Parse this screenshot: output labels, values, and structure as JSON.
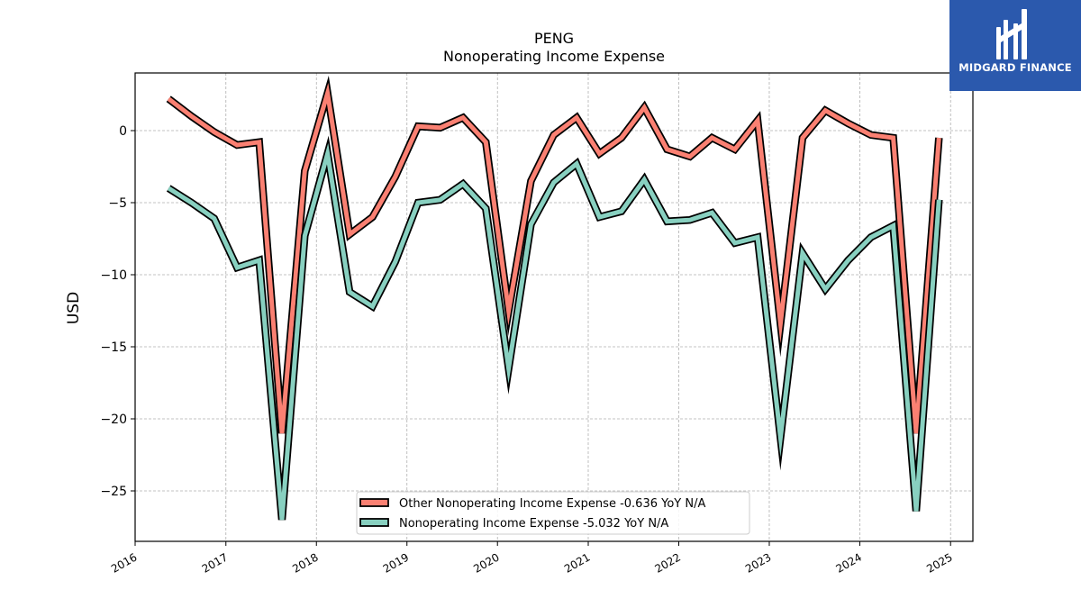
{
  "brand": {
    "name": "MIDGARD FINANCE",
    "color": "#2b59ad"
  },
  "chart_data": {
    "type": "line",
    "title": "PENG",
    "subtitle": "Nonoperating Income Expense",
    "xlabel": "",
    "ylabel": "USD",
    "ylim": [
      -28.5,
      4.0
    ],
    "xlim": [
      "2016-01-01",
      "2025-04-01"
    ],
    "x_ticks": [
      "2016",
      "2017",
      "2018",
      "2019",
      "2020",
      "2021",
      "2022",
      "2023",
      "2024",
      "2025"
    ],
    "y_ticks": [
      0,
      -5,
      -10,
      -15,
      -20,
      -25
    ],
    "y_tick_labels": [
      "0",
      "−5",
      "−10",
      "−15",
      "−20",
      "−25"
    ],
    "grid": true,
    "legend_position": "bottom-center",
    "x": [
      "2016-05",
      "2016-08",
      "2016-11",
      "2017-02",
      "2017-05",
      "2017-08",
      "2017-11",
      "2018-02",
      "2018-05",
      "2018-08",
      "2018-11",
      "2019-02",
      "2019-05",
      "2019-08",
      "2019-11",
      "2020-02",
      "2020-05",
      "2020-08",
      "2020-11",
      "2021-02",
      "2021-05",
      "2021-08",
      "2021-11",
      "2022-02",
      "2022-05",
      "2022-08",
      "2022-11",
      "2023-02",
      "2023-05",
      "2023-08",
      "2023-11",
      "2024-02",
      "2024-05",
      "2024-08",
      "2024-11"
    ],
    "series": [
      {
        "name": "Other Nonoperating Income Expense  -0.636 YoY N/A",
        "color": "#fa8072",
        "values": [
          2.2,
          1.0,
          -0.1,
          -1.0,
          -0.8,
          -21.0,
          -2.8,
          2.6,
          -7.2,
          -6.0,
          -3.2,
          0.3,
          0.2,
          0.9,
          -0.8,
          -12.5,
          -3.5,
          -0.3,
          0.9,
          -1.6,
          -0.5,
          1.6,
          -1.3,
          -1.8,
          -0.5,
          -1.3,
          0.7,
          -13.4,
          -0.5,
          1.4,
          0.5,
          -0.3,
          -0.5,
          -21.0,
          -0.5
        ]
      },
      {
        "name": "Nonoperating Income Expense  -5.032 YoY N/A",
        "color": "#88d0c0",
        "values": [
          -4.0,
          -5.0,
          -6.1,
          -9.5,
          -9.0,
          -27.0,
          -7.3,
          -1.6,
          -11.2,
          -12.2,
          -9.1,
          -5.0,
          -4.8,
          -3.7,
          -5.4,
          -16.5,
          -6.5,
          -3.6,
          -2.3,
          -6.0,
          -5.6,
          -3.4,
          -6.3,
          -6.2,
          -5.7,
          -7.8,
          -7.4,
          -21.3,
          -8.5,
          -11.0,
          -9.0,
          -7.4,
          -6.6,
          -26.4,
          -4.8
        ]
      }
    ]
  }
}
